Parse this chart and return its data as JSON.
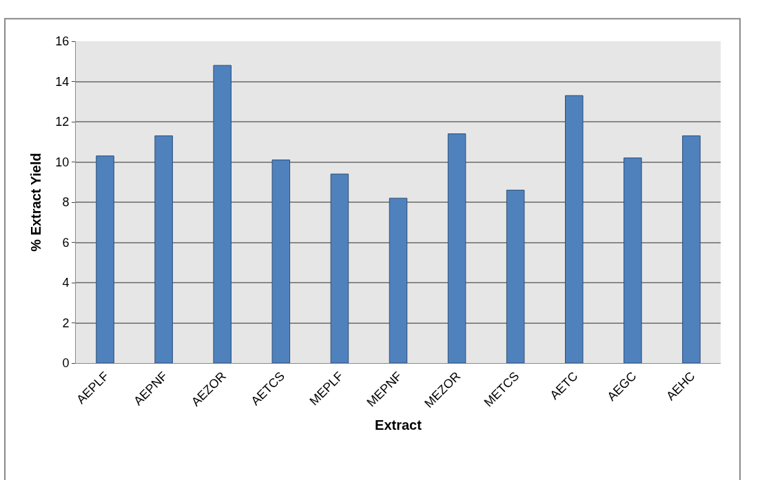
{
  "chart_data": {
    "type": "bar",
    "xlabel": "Extract",
    "ylabel": "% Extract Yield",
    "categories": [
      "AEPLF",
      "AEPNF",
      "AEZOR",
      "AETCS",
      "MEPLF",
      "MEPNF",
      "MEZOR",
      "METCS",
      "AETC",
      "AEGC",
      "AEHC"
    ],
    "values": [
      10.3,
      11.3,
      14.8,
      10.1,
      9.4,
      8.2,
      11.4,
      8.6,
      13.3,
      10.2,
      11.3
    ],
    "color": "#4f81bd",
    "ylim": [
      0,
      16
    ],
    "yticks": [
      0,
      2,
      4,
      6,
      8,
      10,
      12,
      14,
      16
    ],
    "grid": "y"
  }
}
